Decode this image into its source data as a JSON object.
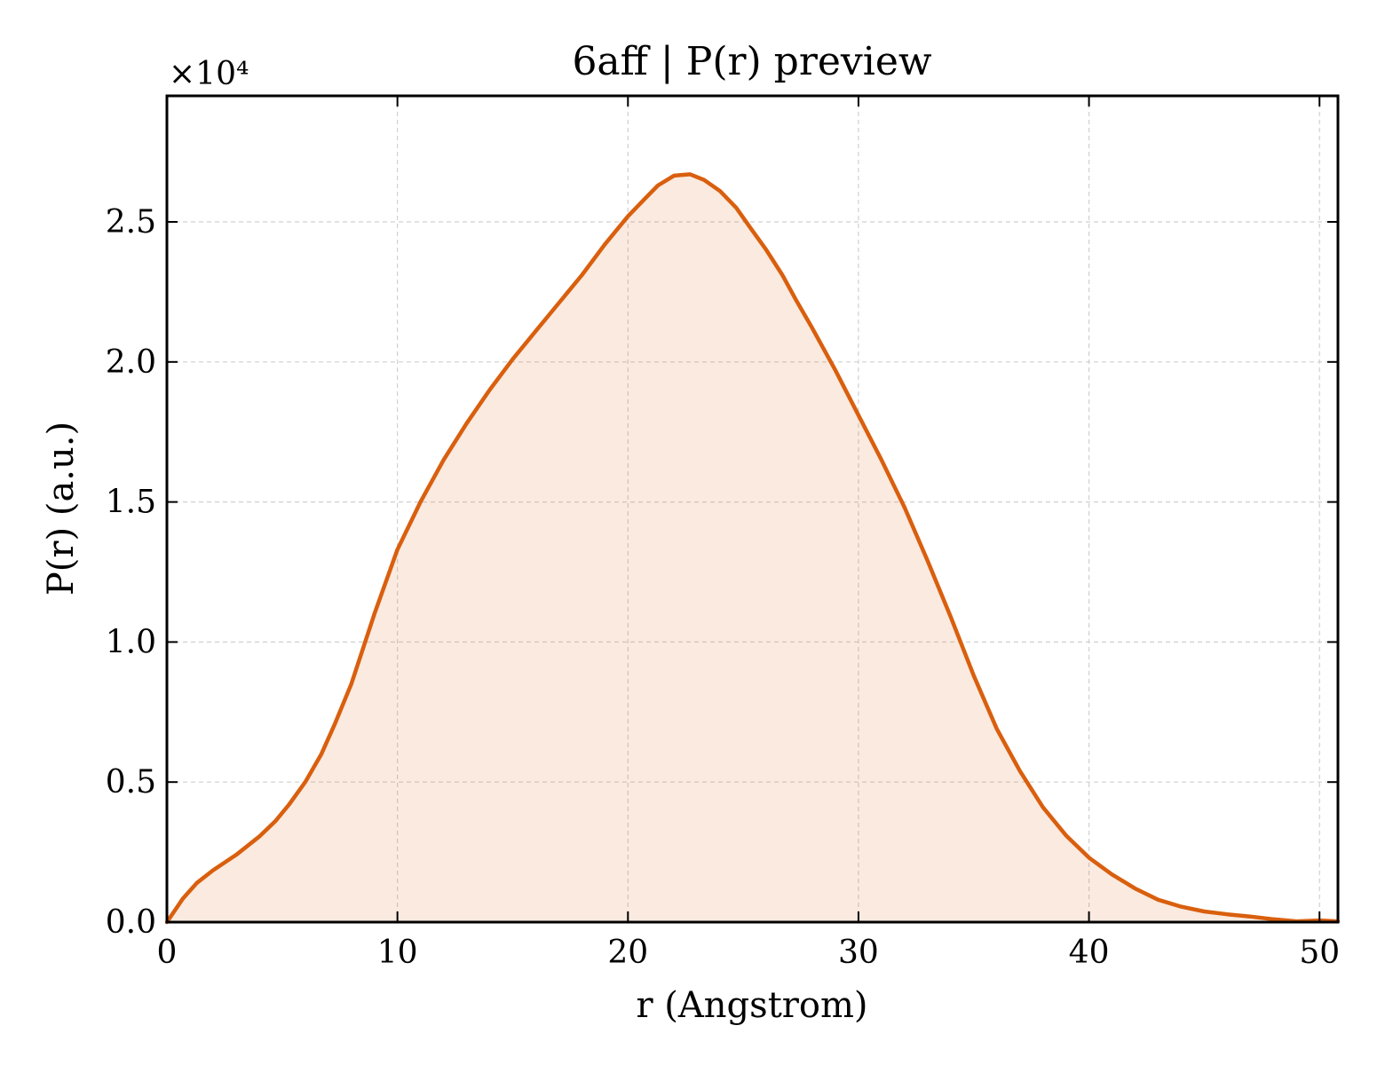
{
  "chart_data": {
    "type": "area",
    "title": "6aff | P(r) preview",
    "xlabel": "r (Angstrom)",
    "ylabel": "P(r) (a.u.)",
    "y_multiplier_label": "×10⁴",
    "xlim": [
      0,
      50.8
    ],
    "ylim": [
      0,
      2.95
    ],
    "x_ticks": [
      0,
      10,
      20,
      30,
      40,
      50
    ],
    "x_tick_labels": [
      "0",
      "10",
      "20",
      "30",
      "40",
      "50"
    ],
    "y_ticks": [
      0,
      0.5,
      1.0,
      1.5,
      2.0,
      2.5
    ],
    "y_tick_labels": [
      "0.0",
      "0.5",
      "1.0",
      "1.5",
      "2.0",
      "2.5"
    ],
    "grid": true,
    "series": [
      {
        "color": "#d95f0e",
        "fill_color": "#d95f0e",
        "x": [
          0,
          0.7,
          1.3,
          2,
          3,
          4,
          4.7,
          5.3,
          6,
          6.7,
          7.3,
          8,
          9,
          10,
          11,
          12,
          13,
          14,
          15,
          16,
          17,
          18,
          19,
          20,
          20.7,
          21.3,
          22,
          22.7,
          23.3,
          24,
          24.7,
          25.3,
          26,
          26.7,
          27.3,
          28,
          29,
          30,
          31,
          32,
          33,
          34,
          35,
          36,
          37,
          38,
          39,
          40,
          41,
          42,
          43,
          44,
          45,
          46,
          47,
          48,
          49,
          50,
          50.8
        ],
        "values": [
          0,
          0.085,
          0.14,
          0.185,
          0.24,
          0.305,
          0.36,
          0.42,
          0.5,
          0.6,
          0.71,
          0.85,
          1.1,
          1.33,
          1.5,
          1.65,
          1.78,
          1.9,
          2.01,
          2.11,
          2.21,
          2.31,
          2.42,
          2.52,
          2.58,
          2.63,
          2.665,
          2.67,
          2.65,
          2.61,
          2.55,
          2.48,
          2.4,
          2.31,
          2.22,
          2.12,
          1.97,
          1.81,
          1.65,
          1.48,
          1.29,
          1.09,
          0.88,
          0.69,
          0.54,
          0.41,
          0.31,
          0.23,
          0.17,
          0.12,
          0.08,
          0.055,
          0.038,
          0.028,
          0.02,
          0.01,
          0.003,
          0.006,
          0.003
        ]
      }
    ]
  }
}
